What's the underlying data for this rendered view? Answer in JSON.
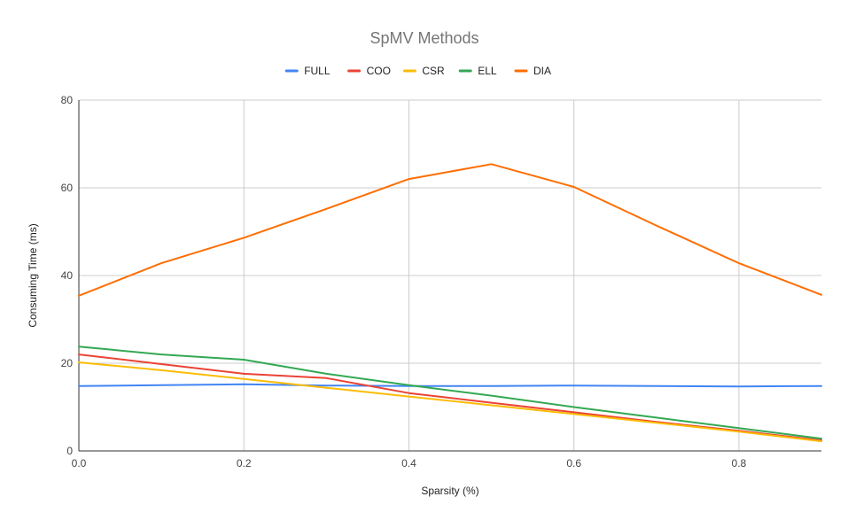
{
  "chart_data": {
    "type": "line",
    "title": "SpMV Methods",
    "xlabel": "Sparsity (%)",
    "ylabel": "Consuming Time (ms)",
    "xlim": [
      0,
      0.9
    ],
    "ylim": [
      0,
      80
    ],
    "x_ticks": [
      0.0,
      0.2,
      0.4,
      0.6,
      0.8
    ],
    "x_tick_labels": [
      "0.0",
      "0.2",
      "0.4",
      "0.6",
      "0.8"
    ],
    "y_ticks": [
      0,
      20,
      40,
      60,
      80
    ],
    "y_tick_labels": [
      "0",
      "20",
      "40",
      "60",
      "80"
    ],
    "grid": true,
    "legend_position": "top",
    "x": [
      0.0,
      0.1,
      0.2,
      0.3,
      0.4,
      0.5,
      0.6,
      0.7,
      0.8,
      0.9
    ],
    "series": [
      {
        "name": "FULL",
        "color": "#4285F4",
        "values": [
          14.8,
          15.0,
          15.2,
          14.9,
          14.8,
          14.8,
          14.9,
          14.8,
          14.7,
          14.8
        ]
      },
      {
        "name": "COO",
        "color": "#EA4335",
        "values": [
          22.0,
          19.8,
          17.6,
          16.6,
          13.2,
          11.0,
          8.8,
          6.6,
          4.6,
          2.4
        ]
      },
      {
        "name": "CSR",
        "color": "#FBBC04",
        "values": [
          20.2,
          18.4,
          16.4,
          14.4,
          12.4,
          10.4,
          8.4,
          6.4,
          4.4,
          2.2
        ]
      },
      {
        "name": "ELL",
        "color": "#34A853",
        "values": [
          23.8,
          22.0,
          20.8,
          17.6,
          15.0,
          12.6,
          10.0,
          7.6,
          5.2,
          2.8
        ]
      },
      {
        "name": "DIA",
        "color": "#FF6D01",
        "values": [
          35.4,
          42.8,
          48.6,
          55.2,
          62.0,
          65.4,
          60.2,
          51.4,
          42.8,
          35.6
        ]
      }
    ]
  }
}
